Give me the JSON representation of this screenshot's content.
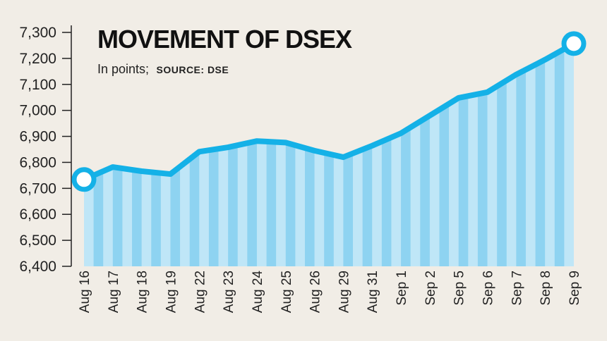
{
  "chart_data": {
    "type": "area",
    "title": "MOVEMENT OF DSEX",
    "subtitle": "In points;",
    "source": "SOURCE: DSE",
    "xlabel": "",
    "ylabel": "",
    "ylim": [
      6400,
      7300
    ],
    "yticks": [
      "6,400",
      "6,500",
      "6,600",
      "6,700",
      "6,800",
      "6,900",
      "7,000",
      "7,100",
      "7,200",
      "7,300"
    ],
    "categories": [
      "Aug 16",
      "Aug 17",
      "Aug 18",
      "Aug 19",
      "Aug 22",
      "Aug 23",
      "Aug 24",
      "Aug 25",
      "Aug 26",
      "Aug 29",
      "Aug 31",
      "Sep 1",
      "Sep 2",
      "Sep 5",
      "Sep 6",
      "Sep 7",
      "Sep 8",
      "Sep 9"
    ],
    "values": [
      6734,
      6782,
      6766,
      6755,
      6841,
      6858,
      6882,
      6876,
      6845,
      6820,
      6864,
      6912,
      6980,
      7048,
      7070,
      7138,
      7195,
      7257
    ],
    "grid": false,
    "colors": {
      "line": "#14b1e7",
      "fill_light": "#bfe6f7",
      "fill_dark": "#8ed3f1",
      "marker_fill": "#ffffff",
      "background": "#f1ede6"
    }
  }
}
